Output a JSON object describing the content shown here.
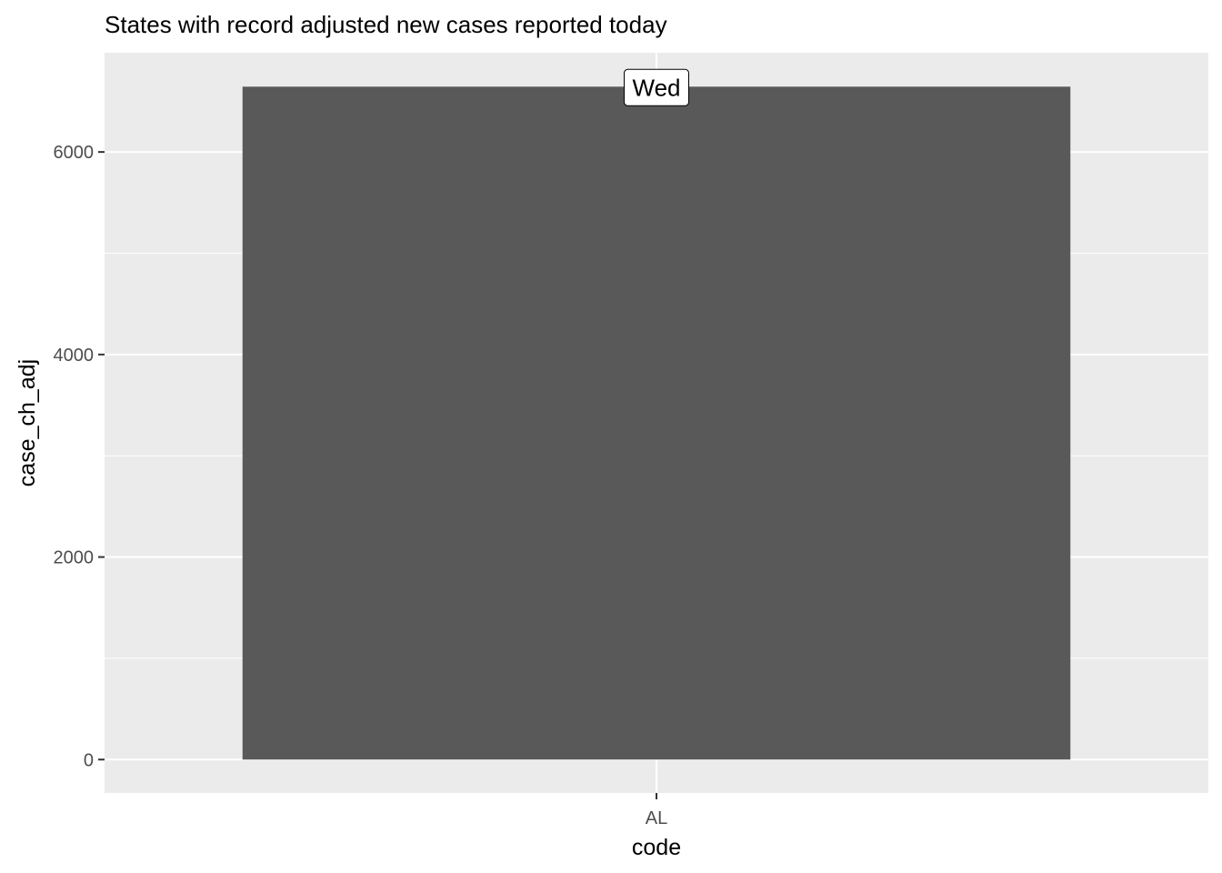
{
  "chart_data": {
    "type": "bar",
    "title": "States with record adjusted new cases reported today",
    "xlabel": "code",
    "ylabel": "case_ch_adj",
    "categories": [
      "AL"
    ],
    "values": [
      6645
    ],
    "bar_labels": [
      "Wed"
    ],
    "ylim": [
      -330,
      6980
    ],
    "yticks": [
      0,
      2000,
      4000,
      6000
    ],
    "ytick_labels": [
      "0",
      "2000",
      "4000",
      "6000"
    ],
    "grid": true,
    "legend": "none",
    "colors": {
      "bar": "#595959",
      "panel": "#ebebeb",
      "grid": "#ffffff",
      "tick": "#333333",
      "tick_text": "#4d4d4d"
    }
  }
}
